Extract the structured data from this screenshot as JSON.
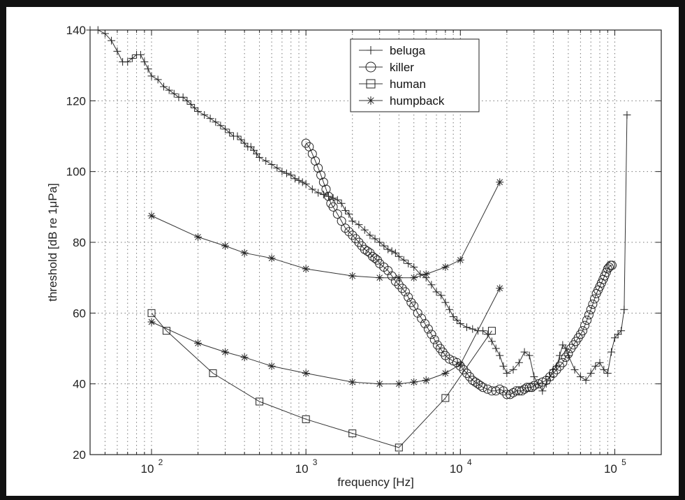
{
  "chart_data": {
    "type": "line",
    "title": "",
    "xlabel": "frequency [Hz]",
    "ylabel": "threshold [dB re 1μPa]",
    "xscale": "log",
    "xlim": [
      40,
      200000
    ],
    "ylim": [
      20,
      140
    ],
    "grid": true,
    "legend_position": "top-center",
    "y_ticks": [
      "20",
      "40",
      "60",
      "80",
      "100",
      "120",
      "140"
    ],
    "x_ticks": [
      {
        "base": "10",
        "exp": "2"
      },
      {
        "base": "10",
        "exp": "3"
      },
      {
        "base": "10",
        "exp": "4"
      },
      {
        "base": "10",
        "exp": "5"
      }
    ],
    "series": [
      {
        "name": "beluga",
        "marker": "plus",
        "x": [
          40,
          45,
          50,
          55,
          60,
          65,
          70,
          75,
          80,
          85,
          90,
          95,
          100,
          110,
          120,
          130,
          140,
          150,
          160,
          170,
          180,
          190,
          200,
          220,
          240,
          260,
          280,
          300,
          320,
          340,
          360,
          380,
          400,
          420,
          440,
          460,
          480,
          500,
          550,
          600,
          650,
          700,
          750,
          800,
          850,
          900,
          950,
          1000,
          1100,
          1200,
          1300,
          1400,
          1500,
          1600,
          1700,
          1800,
          1900,
          2000,
          2200,
          2400,
          2600,
          2800,
          3000,
          3200,
          3400,
          3600,
          3800,
          4000,
          4300,
          4600,
          5000,
          5500,
          6000,
          6500,
          7000,
          7500,
          8000,
          8500,
          9000,
          9500,
          10000,
          11000,
          12000,
          13000,
          14000,
          15000,
          16000,
          17000,
          18000,
          19000,
          20000,
          22000,
          24000,
          26000,
          28000,
          30000,
          32000,
          34000,
          36000,
          38000,
          40000,
          42000,
          44000,
          46000,
          48000,
          50000,
          55000,
          60000,
          65000,
          70000,
          75000,
          80000,
          85000,
          90000,
          95000,
          100000,
          105000,
          110000,
          115000,
          120000
        ],
        "values": [
          140,
          140,
          139,
          137,
          134,
          131,
          131,
          132,
          133,
          133,
          131,
          129,
          127,
          126,
          124,
          123,
          122,
          121,
          121,
          120,
          119,
          118,
          117,
          116,
          115,
          114,
          113,
          112,
          111,
          110,
          110,
          109,
          108,
          107,
          107,
          106,
          105,
          104,
          103,
          102,
          101,
          100,
          99.5,
          99,
          98,
          97.5,
          97,
          96.5,
          95,
          94,
          93.5,
          93,
          92.5,
          92,
          91,
          89,
          88,
          86,
          85,
          83.5,
          82,
          81,
          80,
          79,
          78,
          77.5,
          77,
          76,
          75,
          74,
          73,
          71,
          70,
          68,
          66,
          65,
          63,
          61,
          59,
          58,
          57,
          56,
          55.5,
          55,
          55,
          54,
          52,
          50,
          48,
          45,
          43,
          44,
          46,
          49,
          48,
          42,
          40,
          38,
          40,
          42,
          44,
          45,
          48,
          51,
          50,
          48,
          44,
          42,
          41,
          43,
          45,
          46,
          44,
          43,
          49,
          53,
          54,
          55,
          61,
          116
        ]
      },
      {
        "name": "killer",
        "marker": "circle",
        "x": [
          1000,
          1050,
          1100,
          1150,
          1200,
          1250,
          1300,
          1350,
          1400,
          1450,
          1500,
          1600,
          1700,
          1800,
          1900,
          2000,
          2100,
          2200,
          2300,
          2400,
          2500,
          2600,
          2700,
          2800,
          2900,
          3000,
          3200,
          3400,
          3600,
          3800,
          4000,
          4200,
          4400,
          4600,
          4800,
          5000,
          5300,
          5600,
          5900,
          6200,
          6500,
          6800,
          7100,
          7400,
          7700,
          8000,
          8500,
          9000,
          9500,
          10000,
          10500,
          11000,
          11500,
          12000,
          12500,
          13000,
          13500,
          14000,
          15000,
          16000,
          17000,
          18000,
          19000,
          20000,
          21000,
          22000,
          23000,
          24000,
          25000,
          26000,
          27000,
          28000,
          29000,
          30000,
          32000,
          34000,
          36000,
          38000,
          40000,
          42000,
          44000,
          46000,
          48000,
          50000,
          52000,
          54000,
          56000,
          58000,
          60000,
          62000,
          64000,
          66000,
          68000,
          70000,
          72000,
          74000,
          76000,
          78000,
          80000,
          82000,
          84000,
          86000,
          88000,
          90000,
          92000,
          94000,
          96000
        ],
        "values": [
          108,
          107,
          105,
          103,
          101,
          99,
          97,
          95,
          93,
          91,
          90,
          88,
          86,
          84,
          83,
          82,
          81,
          80,
          79,
          78,
          77.5,
          77,
          76,
          75.5,
          75,
          74,
          73,
          72,
          70.5,
          69,
          68,
          67,
          66,
          64.5,
          63,
          62,
          60,
          58.5,
          57,
          55.5,
          54,
          52.5,
          51,
          50,
          49,
          48,
          47,
          46.5,
          46,
          45,
          44,
          43,
          42,
          41,
          40.5,
          40,
          39.5,
          39,
          38.5,
          38,
          38,
          38.5,
          38,
          37,
          37,
          37.5,
          38,
          38,
          38,
          38.5,
          39,
          39,
          39,
          39.5,
          40,
          40.5,
          41,
          42,
          43,
          44,
          45,
          46,
          47.5,
          48.5,
          50,
          51,
          52,
          53,
          54,
          55,
          56.5,
          58,
          59.5,
          61,
          62.5,
          64,
          65.5,
          66.5,
          67.5,
          68.5,
          69.5,
          70.5,
          71.5,
          72.5,
          73,
          73.5,
          73.5
        ]
      },
      {
        "name": "human",
        "marker": "square",
        "x": [
          100,
          125,
          250,
          500,
          1000,
          2000,
          4000,
          8000,
          16000
        ],
        "values": [
          60,
          55,
          43,
          35,
          30,
          26,
          22,
          36,
          55
        ]
      },
      {
        "name": "humpback",
        "marker": "star",
        "x": [
          100,
          200,
          300,
          400,
          600,
          1000,
          2000,
          3000,
          4000,
          5000,
          6000,
          8000,
          10000,
          18000
        ],
        "values": [
          87.5,
          81.5,
          79,
          77,
          75.5,
          72.5,
          70.5,
          70,
          70,
          70,
          71,
          73,
          75,
          97
        ]
      },
      {
        "name": "",
        "marker": "star",
        "x": [
          100,
          200,
          300,
          400,
          600,
          1000,
          2000,
          3000,
          4000,
          5000,
          6000,
          8000,
          10000,
          18000
        ],
        "values": [
          57.5,
          51.5,
          49,
          47.5,
          45,
          43,
          40.5,
          40,
          40,
          40.5,
          41,
          43,
          45.5,
          67
        ]
      }
    ]
  }
}
